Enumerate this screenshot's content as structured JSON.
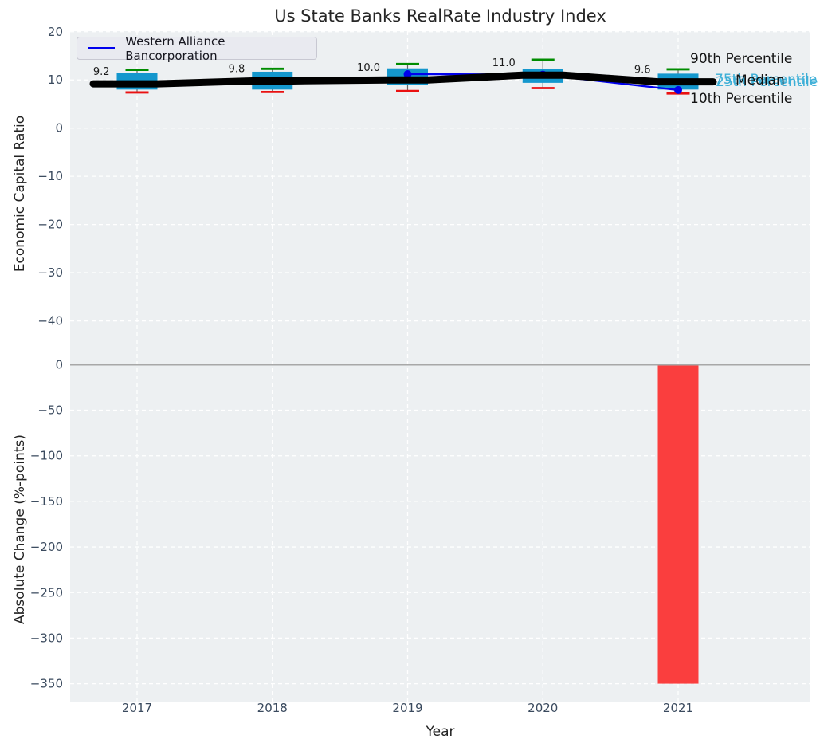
{
  "title": "Us State Banks RealRate Industry Index",
  "colors": {
    "plot_bg": "#edf0f2",
    "grid": "#ffffff",
    "tick": "#3a4a5e",
    "box_fill": "#1497cd",
    "percentile_cyan": "#3cafd7",
    "p90_cap": "#008c00",
    "p10_cap": "#ea1111",
    "median_line": "#000000",
    "series_line": "#0000ee",
    "bar_red": "#fa3e3e",
    "zero_line": "#a8a8a8",
    "whisker": "#666666",
    "legend_bg": "#e9eaf0",
    "legend_border": "#c8c8d2"
  },
  "chart_data": [
    {
      "type": "boxplot",
      "title": "Us State Banks RealRate Industry Index",
      "ylabel": "Economic Capital Ratio",
      "ylim": [
        -47.5,
        19.8
      ],
      "grid": true,
      "legend_position": "upper left",
      "yticks": [
        20,
        10,
        0,
        -10,
        -20,
        -30,
        -40
      ],
      "ytick_labels": [
        "20",
        "10",
        "0",
        "−10",
        "−20",
        "−30",
        "−40"
      ],
      "years": [
        2017,
        2018,
        2019,
        2020,
        2021
      ],
      "year_labels": [
        "2017",
        "2018",
        "2019",
        "2020",
        "2021"
      ],
      "boxes": [
        {
          "year": 2017,
          "p10": 7.4,
          "p25": 8.0,
          "median": 9.2,
          "p75": 11.4,
          "p90": 12.1,
          "label": "9.2"
        },
        {
          "year": 2018,
          "p10": 7.5,
          "p25": 8.0,
          "median": 9.8,
          "p75": 11.7,
          "p90": 12.3,
          "label": "9.8"
        },
        {
          "year": 2019,
          "p10": 7.7,
          "p25": 8.9,
          "median": 10.0,
          "p75": 12.4,
          "p90": 13.3,
          "label": "10.0"
        },
        {
          "year": 2020,
          "p10": 8.3,
          "p25": 9.4,
          "median": 11.0,
          "p75": 12.3,
          "p90": 14.2,
          "label": "11.0"
        },
        {
          "year": 2021,
          "p10": 7.2,
          "p25": 8.0,
          "median": 9.6,
          "p75": 11.3,
          "p90": 12.2,
          "label": "9.6"
        }
      ],
      "series": [
        {
          "name": "Western Alliance Bancorporation",
          "x": [
            2019,
            2020,
            2021
          ],
          "values": [
            11.2,
            11.1,
            7.9
          ]
        }
      ],
      "percentile_labels": {
        "p90": "90th Percentile",
        "p75": "75th Percentile",
        "median": "Median",
        "p25": "25th Percentile",
        "p10": "10th Percentile"
      }
    },
    {
      "type": "bar",
      "ylabel": "Absolute Change (%-points)",
      "xlabel": "Year",
      "ylim": [
        -372,
        8
      ],
      "grid": true,
      "zero_line": true,
      "yticks": [
        0,
        -50,
        -100,
        -150,
        -200,
        -250,
        -300,
        -350
      ],
      "ytick_labels": [
        "0",
        "−50",
        "−100",
        "−150",
        "−200",
        "−250",
        "−300",
        "−350"
      ],
      "categories": [
        "2017",
        "2018",
        "2019",
        "2020",
        "2021"
      ],
      "values": [
        null,
        null,
        null,
        null,
        -350
      ]
    }
  ]
}
